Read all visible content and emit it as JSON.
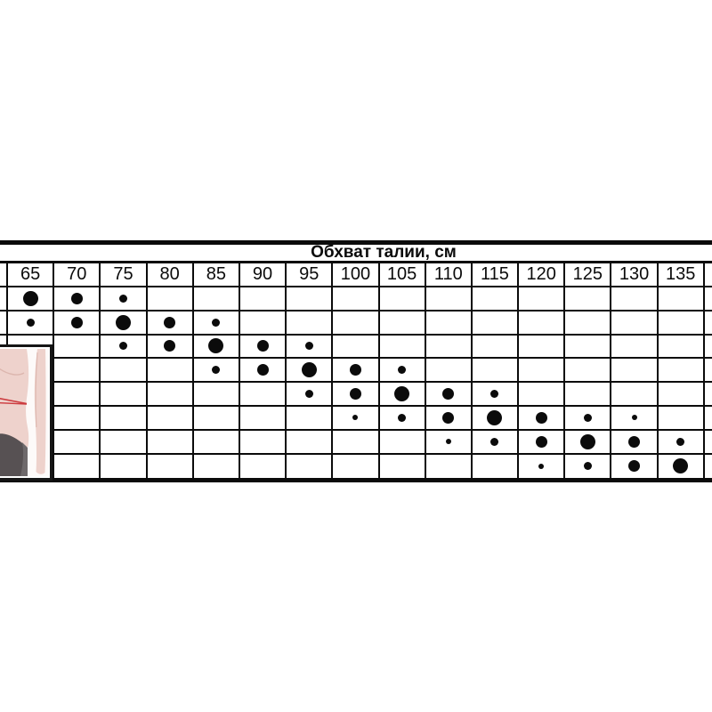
{
  "colors": {
    "background": "#ffffff",
    "grid_line": "#0b0b0b",
    "dot": "#0b0b0b",
    "illustration_skin": "#eed2cc",
    "illustration_skin_shadow": "#dcb6ae",
    "illustration_tape": "#cc3a3e",
    "illustration_shorts": "#575153",
    "illustration_frame": "#161616"
  },
  "chart_data": {
    "type": "table",
    "title": "Обхват талии, см",
    "columns": [
      "65",
      "70",
      "75",
      "80",
      "85",
      "90",
      "95",
      "100",
      "105",
      "110",
      "115",
      "120",
      "125",
      "130",
      "135"
    ],
    "dot_size_px": {
      "T": 6,
      "S": 9,
      "M": 13,
      "L": 17
    },
    "dot_size_names": {
      "T": "tiny",
      "S": "small",
      "M": "medium",
      "L": "large"
    },
    "rows": [
      [
        "L",
        "M",
        "S",
        "",
        "",
        "",
        "",
        "",
        "",
        "",
        "",
        "",
        "",
        "",
        ""
      ],
      [
        "S",
        "M",
        "L",
        "M",
        "S",
        "",
        "",
        "",
        "",
        "",
        "",
        "",
        "",
        "",
        ""
      ],
      [
        "",
        "",
        "S",
        "M",
        "L",
        "M",
        "S",
        "",
        "",
        "",
        "",
        "",
        "",
        "",
        ""
      ],
      [
        "",
        "",
        "",
        "",
        "S",
        "M",
        "L",
        "M",
        "S",
        "",
        "",
        "",
        "",
        "",
        ""
      ],
      [
        "",
        "",
        "",
        "",
        "",
        "",
        "S",
        "M",
        "L",
        "M",
        "S",
        "",
        "",
        "",
        ""
      ],
      [
        "",
        "",
        "",
        "",
        "",
        "",
        "",
        "T",
        "S",
        "M",
        "L",
        "M",
        "S",
        "T",
        ""
      ],
      [
        "",
        "",
        "",
        "",
        "",
        "",
        "",
        "",
        "",
        "T",
        "S",
        "M",
        "L",
        "M",
        "S"
      ],
      [
        "",
        "",
        "",
        "",
        "",
        "",
        "",
        "",
        "",
        "",
        "",
        "T",
        "S",
        "M",
        "L"
      ]
    ],
    "legend_position": "none",
    "grid": true
  },
  "illustration": {
    "name": "waist-measurement-illustration"
  }
}
